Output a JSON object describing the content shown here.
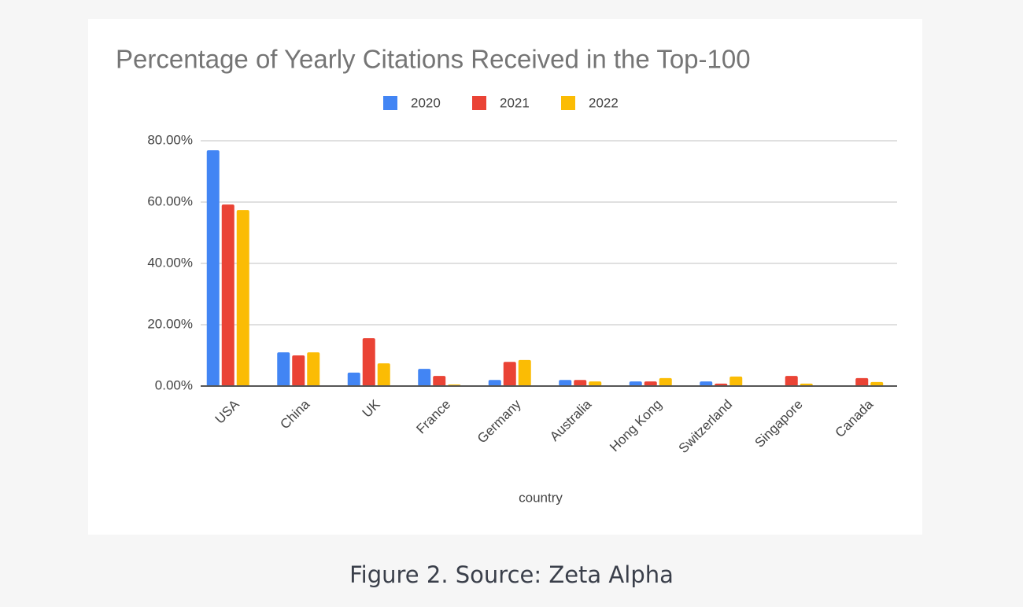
{
  "chart_data": {
    "type": "bar",
    "title": "Percentage of Yearly Citations Received in the Top-100",
    "x_label": "country",
    "categories": [
      "USA",
      "China",
      "UK",
      "France",
      "Germany",
      "Australia",
      "Hong Kong",
      "Switzerland",
      "Singapore",
      "Canada"
    ],
    "series": [
      {
        "name": "2020",
        "color": "#4285f4",
        "values": [
          76.9,
          11.0,
          4.4,
          5.6,
          2.0,
          2.0,
          1.5,
          1.5,
          null,
          null
        ]
      },
      {
        "name": "2021",
        "color": "#ea4335",
        "values": [
          59.2,
          10.0,
          15.6,
          3.3,
          7.9,
          2.0,
          1.5,
          0.8,
          3.3,
          2.6
        ]
      },
      {
        "name": "2022",
        "color": "#fbbc04",
        "values": [
          57.4,
          11.0,
          7.4,
          0.5,
          8.5,
          1.5,
          2.6,
          3.1,
          0.8,
          1.3
        ]
      }
    ],
    "ylim": [
      0,
      80
    ],
    "yticks": [
      {
        "value": 0,
        "label": "0.00%"
      },
      {
        "value": 20,
        "label": "20.00%"
      },
      {
        "value": 40,
        "label": "40.00%"
      },
      {
        "value": 60,
        "label": "60.00%"
      },
      {
        "value": 80,
        "label": "80.00%"
      }
    ],
    "grid": true,
    "legend": "top"
  },
  "caption": "Figure 2. Source: Zeta Alpha"
}
